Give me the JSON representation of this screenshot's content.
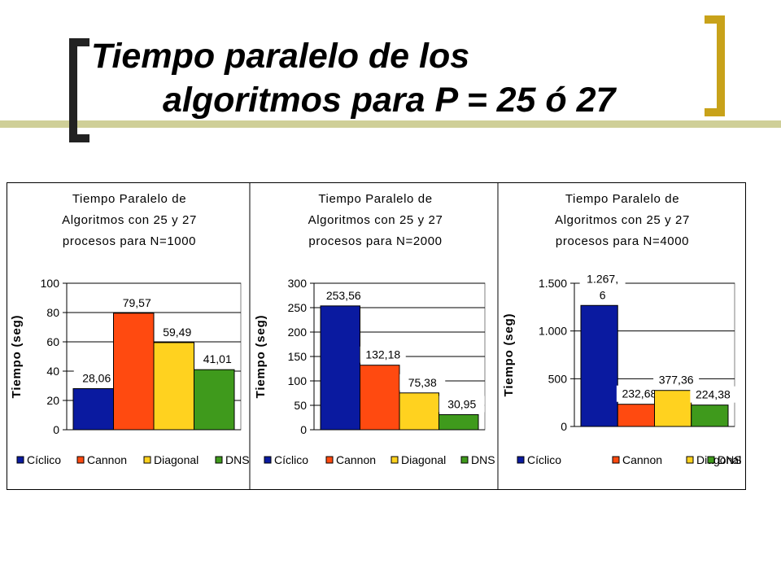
{
  "slide": {
    "title_line1": "Tiempo paralelo de los",
    "title_line2": "algoritmos para P = 25 ó 27",
    "colors": {
      "accent_left": "#222222",
      "accent_right": "#c8a21a",
      "band": "#cfcf98"
    }
  },
  "legend_colors": [
    "#0a1aa0",
    "#ff4a10",
    "#ffd21f",
    "#3f9a1c"
  ],
  "chart_data": [
    {
      "type": "bar",
      "title_lines": [
        "Tiempo Paralelo de",
        "Algoritmos con 25 y 27",
        "procesos para N=1000"
      ],
      "ylabel": "Tiempo (seg)",
      "categories": [
        "Cíclico",
        "Cannon",
        "Diagonal",
        "DNS"
      ],
      "values": [
        28.06,
        79.57,
        59.49,
        41.01
      ],
      "data_labels": [
        "28,06",
        "79,57",
        "59,49",
        "41,01"
      ],
      "ylim": [
        0,
        100
      ],
      "yticks": [
        0,
        20,
        40,
        60,
        80,
        100
      ],
      "ytick_labels": [
        "0",
        "20",
        "40",
        "60",
        "80",
        "100"
      ],
      "grid": true,
      "legend_position": "bottom"
    },
    {
      "type": "bar",
      "title_lines": [
        "Tiempo Paralelo de",
        "Algoritmos con 25 y 27",
        "procesos para N=2000"
      ],
      "ylabel": "Tiempo (seg)",
      "categories": [
        "Cíclico",
        "Cannon",
        "Diagonal",
        "DNS"
      ],
      "values": [
        253.56,
        132.18,
        75.38,
        30.95
      ],
      "data_labels": [
        "253,56",
        "132,18",
        "75,38",
        "30,95"
      ],
      "ylim": [
        0,
        300
      ],
      "yticks": [
        0,
        50,
        100,
        150,
        200,
        250,
        300
      ],
      "ytick_labels": [
        "0",
        "50",
        "100",
        "150",
        "200",
        "250",
        "300"
      ],
      "grid": true,
      "legend_position": "bottom"
    },
    {
      "type": "bar",
      "title_lines": [
        "Tiempo Paralelo de",
        "Algoritmos con 25 y 27",
        "procesos para N=4000"
      ],
      "ylabel": "Tiempo (seg)",
      "categories": [
        "Cíclico",
        "Cannon",
        "Diagonal",
        "DNS"
      ],
      "values": [
        1267.6,
        232.68,
        377.36,
        224.38
      ],
      "data_labels": [
        "1.267,\n6",
        "232,68",
        "377,36",
        "224,38"
      ],
      "ylim": [
        0,
        1500
      ],
      "yticks": [
        0,
        500,
        1000,
        1500
      ],
      "ytick_labels": [
        "0",
        "500",
        "1.000",
        "1.500"
      ],
      "grid": true,
      "legend_position": "bottom"
    }
  ]
}
